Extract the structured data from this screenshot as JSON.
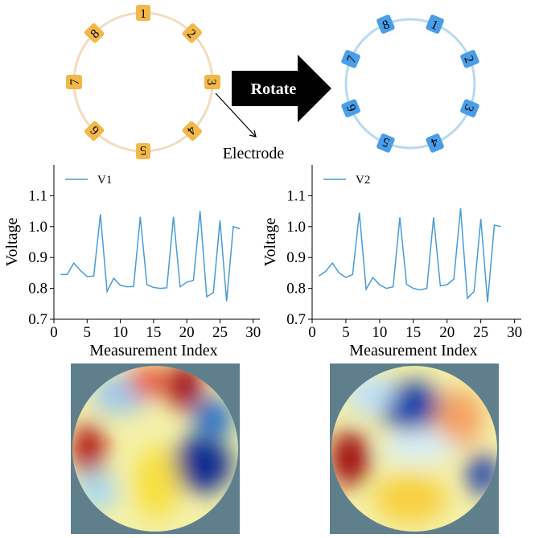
{
  "diagram": {
    "left_electrodes": [
      "1",
      "2",
      "3",
      "4",
      "5",
      "6",
      "7",
      "8"
    ],
    "right_electrodes": [
      "1",
      "2",
      "3",
      "4",
      "5",
      "6",
      "7",
      "8"
    ],
    "arrow_label": "Rotate",
    "callout": "Electrode"
  },
  "chart_data": [
    {
      "type": "line",
      "x_label": "Measurement Index",
      "y_label": "Voltage",
      "legend": "upper left",
      "x": [
        1,
        2,
        3,
        4,
        5,
        6,
        7,
        8,
        9,
        10,
        11,
        12,
        13,
        14,
        15,
        16,
        17,
        18,
        19,
        20,
        21,
        22,
        23,
        24,
        25,
        26,
        27,
        28
      ],
      "series": [
        {
          "name": "V1",
          "color": "#4a9ad8",
          "values": [
            0.845,
            0.845,
            0.882,
            0.858,
            0.838,
            0.84,
            1.04,
            0.79,
            0.833,
            0.81,
            0.805,
            0.806,
            1.032,
            0.812,
            0.803,
            0.8,
            0.802,
            1.032,
            0.805,
            0.82,
            0.826,
            1.05,
            0.773,
            0.786,
            1.02,
            0.758,
            1.0,
            0.993
          ]
        }
      ],
      "xlim": [
        0,
        31
      ],
      "xticks": [
        0,
        5,
        10,
        15,
        20,
        25,
        30
      ],
      "ylim": [
        0.7,
        1.2
      ],
      "yticks": [
        0.7,
        0.8,
        0.9,
        {
          "value": 1,
          "label": "1.0"
        },
        1.1
      ]
    },
    {
      "type": "line",
      "x_label": "Measurement Index",
      "y_label": "Voltage",
      "legend": "upper left",
      "x": [
        1,
        2,
        3,
        4,
        5,
        6,
        7,
        8,
        9,
        10,
        11,
        12,
        13,
        14,
        15,
        16,
        17,
        18,
        19,
        20,
        21,
        22,
        23,
        24,
        25,
        26,
        27,
        28
      ],
      "series": [
        {
          "name": "V2",
          "color": "#4a9ad8",
          "values": [
            0.84,
            0.855,
            0.882,
            0.85,
            0.835,
            0.845,
            1.045,
            0.797,
            0.835,
            0.812,
            0.8,
            0.805,
            1.03,
            0.813,
            0.8,
            0.795,
            0.8,
            1.03,
            0.808,
            0.812,
            0.83,
            1.06,
            0.768,
            0.79,
            1.025,
            0.755,
            1.005,
            1.0
          ]
        }
      ],
      "xlim": [
        0,
        31
      ],
      "xticks": [
        0,
        5,
        10,
        15,
        20,
        25,
        30
      ],
      "ylim": [
        0.7,
        1.2
      ],
      "yticks": [
        0.7,
        0.8,
        0.9,
        {
          "value": 1,
          "label": "1.0"
        },
        1.1
      ]
    }
  ]
}
